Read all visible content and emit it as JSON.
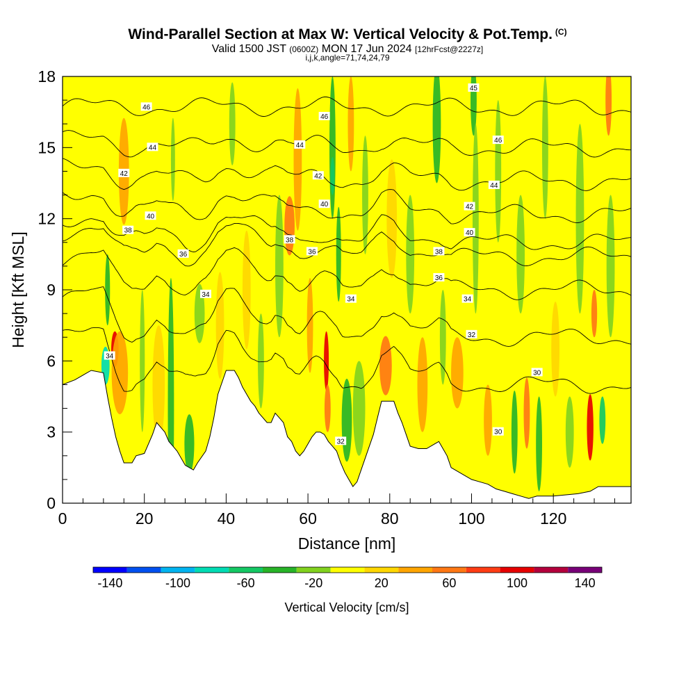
{
  "title": {
    "main": "Wind-Parallel Section at Max W: Vertical Velocity & Pot.Temp.",
    "suffix": "(C)",
    "valid_a": "Valid 1500 JST",
    "valid_b": "(0600Z)",
    "valid_c": "MON 17 Jun 2024",
    "valid_d": "[12hrFcst@2227z]",
    "params": "i,j,k,angle=71,74,24,79"
  },
  "chart_data": {
    "type": "heatmap",
    "xlabel": "Distance [nm]",
    "ylabel": "Height [Kft MSL]",
    "xlim": [
      0,
      139
    ],
    "ylim": [
      0,
      18
    ],
    "x_ticks": [
      0,
      20,
      40,
      60,
      80,
      100,
      120
    ],
    "x_tick_labels": [
      "0",
      "20",
      "40",
      "60",
      "80",
      "100",
      "120"
    ],
    "y_ticks": [
      0,
      3,
      6,
      9,
      12,
      15,
      18
    ],
    "y_tick_labels": [
      "0",
      "3",
      "6",
      "9",
      "12",
      "15",
      "18"
    ],
    "colorbar": {
      "label": "Vertical Velocity [cm/s]",
      "levels": [
        -150,
        -130,
        -110,
        -90,
        -70,
        -50,
        -30,
        -10,
        10,
        30,
        50,
        70,
        90,
        110,
        130,
        150
      ],
      "colors": [
        "#0000ff",
        "#0050f0",
        "#00b4f0",
        "#00dcb4",
        "#14c864",
        "#28b428",
        "#82d21e",
        "#ffff00",
        "#ffd700",
        "#ffa500",
        "#ff7814",
        "#ff3c14",
        "#e60000",
        "#b4003c",
        "#780078"
      ],
      "tick_values": [
        -140,
        -100,
        -60,
        -20,
        20,
        60,
        100,
        140
      ],
      "tick_labels": [
        "-140",
        "-100",
        "-60",
        "-20",
        "20",
        "60",
        "100",
        "140"
      ]
    },
    "terrain_height": [
      [
        0,
        5.0
      ],
      [
        3,
        5.2
      ],
      [
        5,
        5.4
      ],
      [
        7,
        5.6
      ],
      [
        10,
        5.5
      ],
      [
        11,
        4.5
      ],
      [
        12,
        3.6
      ],
      [
        13,
        2.8
      ],
      [
        14,
        2.2
      ],
      [
        15,
        1.7
      ],
      [
        17,
        1.7
      ],
      [
        18,
        2.0
      ],
      [
        20,
        2.1
      ],
      [
        22,
        2.9
      ],
      [
        23,
        3.4
      ],
      [
        25,
        3.0
      ],
      [
        26,
        2.6
      ],
      [
        27,
        2.4
      ],
      [
        28,
        2.2
      ],
      [
        30,
        1.6
      ],
      [
        32,
        1.4
      ],
      [
        33,
        1.7
      ],
      [
        35,
        2.2
      ],
      [
        36,
        2.8
      ],
      [
        37,
        3.6
      ],
      [
        38,
        4.6
      ],
      [
        40,
        5.6
      ],
      [
        42,
        5.6
      ],
      [
        43,
        5.3
      ],
      [
        44,
        4.9
      ],
      [
        45,
        4.6
      ],
      [
        46,
        4.3
      ],
      [
        47,
        4.1
      ],
      [
        48,
        3.8
      ],
      [
        49,
        3.6
      ],
      [
        50,
        3.4
      ],
      [
        51,
        3.4
      ],
      [
        52,
        3.8
      ],
      [
        53,
        3.6
      ],
      [
        54,
        3.4
      ],
      [
        55,
        2.8
      ],
      [
        56,
        2.6
      ],
      [
        57,
        2.2
      ],
      [
        58,
        2.0
      ],
      [
        59,
        2.2
      ],
      [
        60,
        2.5
      ],
      [
        61,
        2.8
      ],
      [
        62,
        3.0
      ],
      [
        63,
        3.0
      ],
      [
        64,
        2.9
      ],
      [
        65,
        2.6
      ],
      [
        66,
        2.4
      ],
      [
        67,
        2.2
      ],
      [
        68,
        1.7
      ],
      [
        69,
        1.3
      ],
      [
        70,
        1.0
      ],
      [
        71,
        0.7
      ],
      [
        72,
        0.9
      ],
      [
        73,
        1.4
      ],
      [
        74,
        1.9
      ],
      [
        75,
        2.4
      ],
      [
        76,
        2.9
      ],
      [
        77,
        3.6
      ],
      [
        78,
        4.3
      ],
      [
        81,
        4.3
      ],
      [
        82,
        3.8
      ],
      [
        83,
        3.4
      ],
      [
        84,
        2.9
      ],
      [
        85,
        2.4
      ],
      [
        87,
        2.3
      ],
      [
        89,
        2.3
      ],
      [
        91,
        2.5
      ],
      [
        92,
        2.6
      ],
      [
        93,
        2.3
      ],
      [
        94,
        2.0
      ],
      [
        95,
        1.5
      ],
      [
        96,
        1.4
      ],
      [
        98,
        1.2
      ],
      [
        100,
        1.0
      ],
      [
        102,
        0.9
      ],
      [
        104,
        0.8
      ],
      [
        106,
        0.6
      ],
      [
        108,
        0.5
      ],
      [
        110,
        0.4
      ],
      [
        112,
        0.3
      ],
      [
        114,
        0.2
      ],
      [
        116,
        0.3
      ],
      [
        120,
        0.3
      ],
      [
        126,
        0.4
      ],
      [
        129,
        0.5
      ],
      [
        131,
        0.7
      ],
      [
        139,
        0.7
      ]
    ],
    "velocity_cells": [
      {
        "x": 10.5,
        "y": 5.8,
        "w": 2.0,
        "h": 1.6,
        "value": -80
      },
      {
        "x": 11.0,
        "y": 9.0,
        "w": 1.2,
        "h": 3.0,
        "value": -40
      },
      {
        "x": 12.8,
        "y": 6.5,
        "w": 1.8,
        "h": 1.5,
        "value": 100
      },
      {
        "x": 14.0,
        "y": 5.5,
        "w": 4.0,
        "h": 3.5,
        "value": 40
      },
      {
        "x": 15.0,
        "y": 14.0,
        "w": 2.5,
        "h": 4.5,
        "value": 30
      },
      {
        "x": 19.5,
        "y": 6.0,
        "w": 1.2,
        "h": 6.0,
        "value": -20
      },
      {
        "x": 23.5,
        "y": 5.0,
        "w": 3.0,
        "h": 5.0,
        "value": 20
      },
      {
        "x": 26.5,
        "y": 4.0,
        "w": 1.5,
        "h": 11.0,
        "value": -40
      },
      {
        "x": 27.0,
        "y": 14.5,
        "w": 1.0,
        "h": 3.5,
        "value": -20
      },
      {
        "x": 31.0,
        "y": 2.5,
        "w": 2.4,
        "h": 2.5,
        "value": -50
      },
      {
        "x": 33.5,
        "y": 8.0,
        "w": 2.5,
        "h": 2.5,
        "value": -20
      },
      {
        "x": 38.5,
        "y": 7.5,
        "w": 2.0,
        "h": 4.5,
        "value": 20
      },
      {
        "x": 41.5,
        "y": 16.0,
        "w": 1.5,
        "h": 3.5,
        "value": -20
      },
      {
        "x": 45.0,
        "y": 9.0,
        "w": 2.0,
        "h": 5.0,
        "value": 20
      },
      {
        "x": 48.5,
        "y": 6.0,
        "w": 1.5,
        "h": 4.0,
        "value": -20
      },
      {
        "x": 53.0,
        "y": 10.0,
        "w": 2.0,
        "h": 6.0,
        "value": -20
      },
      {
        "x": 55.5,
        "y": 11.7,
        "w": 2.5,
        "h": 2.5,
        "value": 50
      },
      {
        "x": 57.5,
        "y": 14.5,
        "w": 2.0,
        "h": 6.0,
        "value": 30
      },
      {
        "x": 60.5,
        "y": 7.5,
        "w": 1.5,
        "h": 4.0,
        "value": 30
      },
      {
        "x": 64.5,
        "y": 6.0,
        "w": 1.2,
        "h": 2.5,
        "value": 100
      },
      {
        "x": 64.8,
        "y": 4.0,
        "w": 1.5,
        "h": 2.0,
        "value": 60
      },
      {
        "x": 66.0,
        "y": 15.0,
        "w": 1.5,
        "h": 6.0,
        "value": -40
      },
      {
        "x": 66.0,
        "y": 13.8,
        "w": 1.0,
        "h": 1.6,
        "value": -70
      },
      {
        "x": 67.5,
        "y": 10.5,
        "w": 1.2,
        "h": 4.0,
        "value": -40
      },
      {
        "x": 69.5,
        "y": 3.5,
        "w": 2.5,
        "h": 3.5,
        "value": -40
      },
      {
        "x": 72.5,
        "y": 4.0,
        "w": 3.0,
        "h": 4.0,
        "value": -30
      },
      {
        "x": 70.5,
        "y": 16.0,
        "w": 1.5,
        "h": 4.0,
        "value": 30
      },
      {
        "x": 74.0,
        "y": 13.0,
        "w": 1.5,
        "h": 5.0,
        "value": -20
      },
      {
        "x": 79.0,
        "y": 5.8,
        "w": 3.0,
        "h": 2.5,
        "value": 50
      },
      {
        "x": 80.5,
        "y": 12.0,
        "w": 2.5,
        "h": 5.0,
        "value": 20
      },
      {
        "x": 85.0,
        "y": 10.5,
        "w": 2.0,
        "h": 5.0,
        "value": -30
      },
      {
        "x": 88.0,
        "y": 5.0,
        "w": 2.5,
        "h": 4.0,
        "value": 30
      },
      {
        "x": 91.5,
        "y": 16.0,
        "w": 2.0,
        "h": 5.0,
        "value": -40
      },
      {
        "x": 93.0,
        "y": 7.0,
        "w": 1.5,
        "h": 4.0,
        "value": -20
      },
      {
        "x": 96.5,
        "y": 5.5,
        "w": 3.0,
        "h": 3.0,
        "value": 30
      },
      {
        "x": 100.5,
        "y": 17.0,
        "w": 1.5,
        "h": 3.0,
        "value": -50
      },
      {
        "x": 101.0,
        "y": 12.0,
        "w": 1.5,
        "h": 8.0,
        "value": -30
      },
      {
        "x": 104.0,
        "y": 3.5,
        "w": 2.0,
        "h": 3.0,
        "value": 30
      },
      {
        "x": 106.5,
        "y": 14.0,
        "w": 1.5,
        "h": 6.0,
        "value": -20
      },
      {
        "x": 110.5,
        "y": 3.0,
        "w": 1.5,
        "h": 3.5,
        "value": -40
      },
      {
        "x": 112.0,
        "y": 10.5,
        "w": 2.0,
        "h": 5.0,
        "value": -30
      },
      {
        "x": 113.5,
        "y": 3.8,
        "w": 1.5,
        "h": 3.0,
        "value": 60
      },
      {
        "x": 116.5,
        "y": 2.5,
        "w": 1.5,
        "h": 4.0,
        "value": -40
      },
      {
        "x": 118.0,
        "y": 15.0,
        "w": 1.5,
        "h": 6.0,
        "value": -30
      },
      {
        "x": 120.5,
        "y": 6.5,
        "w": 2.0,
        "h": 4.0,
        "value": 20
      },
      {
        "x": 124.0,
        "y": 3.0,
        "w": 2.0,
        "h": 3.0,
        "value": -20
      },
      {
        "x": 126.5,
        "y": 12.0,
        "w": 2.0,
        "h": 8.0,
        "value": -20
      },
      {
        "x": 129.0,
        "y": 3.2,
        "w": 1.6,
        "h": 2.8,
        "value": 100
      },
      {
        "x": 130.0,
        "y": 8.0,
        "w": 1.4,
        "h": 2.0,
        "value": 60
      },
      {
        "x": 132.0,
        "y": 3.5,
        "w": 1.5,
        "h": 2.0,
        "value": -70
      },
      {
        "x": 134.0,
        "y": 10.0,
        "w": 2.0,
        "h": 6.0,
        "value": -30
      },
      {
        "x": 133.5,
        "y": 17.0,
        "w": 1.5,
        "h": 3.0,
        "value": 50
      }
    ],
    "isentrope_heights": [
      {
        "theta": 46,
        "y": 16.7
      },
      {
        "theta": 44,
        "y": 15.0
      },
      {
        "theta": 42,
        "y": 13.6
      },
      {
        "theta": 40,
        "y": 12.2
      },
      {
        "theta": 38,
        "y": 11.0
      },
      {
        "theta": 36,
        "y": 10.4
      },
      {
        "theta": 34,
        "y": 9.0
      },
      {
        "theta": 32,
        "y": 7.0
      },
      {
        "theta": 30,
        "y": 5.0
      }
    ],
    "contour_labels": [
      {
        "text": "46",
        "x": 20.5,
        "y": 16.7
      },
      {
        "text": "44",
        "x": 22.0,
        "y": 15.0
      },
      {
        "text": "42",
        "x": 15.0,
        "y": 13.9
      },
      {
        "text": "40",
        "x": 21.5,
        "y": 12.1
      },
      {
        "text": "38",
        "x": 16.0,
        "y": 11.5
      },
      {
        "text": "36",
        "x": 29.5,
        "y": 10.5
      },
      {
        "text": "34",
        "x": 35.0,
        "y": 8.8
      },
      {
        "text": "34",
        "x": 11.5,
        "y": 6.2
      },
      {
        "text": "46",
        "x": 64.0,
        "y": 16.3
      },
      {
        "text": "44",
        "x": 58.0,
        "y": 15.1
      },
      {
        "text": "42",
        "x": 62.5,
        "y": 13.8
      },
      {
        "text": "40",
        "x": 64.0,
        "y": 12.6
      },
      {
        "text": "38",
        "x": 55.5,
        "y": 11.1
      },
      {
        "text": "36",
        "x": 61.0,
        "y": 10.6
      },
      {
        "text": "34",
        "x": 70.5,
        "y": 8.6
      },
      {
        "text": "32",
        "x": 68.0,
        "y": 2.6
      },
      {
        "text": "45",
        "x": 100.5,
        "y": 17.5
      },
      {
        "text": "46",
        "x": 106.5,
        "y": 15.3
      },
      {
        "text": "44",
        "x": 105.5,
        "y": 13.4
      },
      {
        "text": "42",
        "x": 99.5,
        "y": 12.5
      },
      {
        "text": "40",
        "x": 99.5,
        "y": 11.4
      },
      {
        "text": "38",
        "x": 92.0,
        "y": 10.6
      },
      {
        "text": "36",
        "x": 92.0,
        "y": 9.5
      },
      {
        "text": "34",
        "x": 99.0,
        "y": 8.6
      },
      {
        "text": "32",
        "x": 100.0,
        "y": 7.1
      },
      {
        "text": "30",
        "x": 116.0,
        "y": 5.5
      },
      {
        "text": "30",
        "x": 106.5,
        "y": 3.0
      }
    ]
  }
}
